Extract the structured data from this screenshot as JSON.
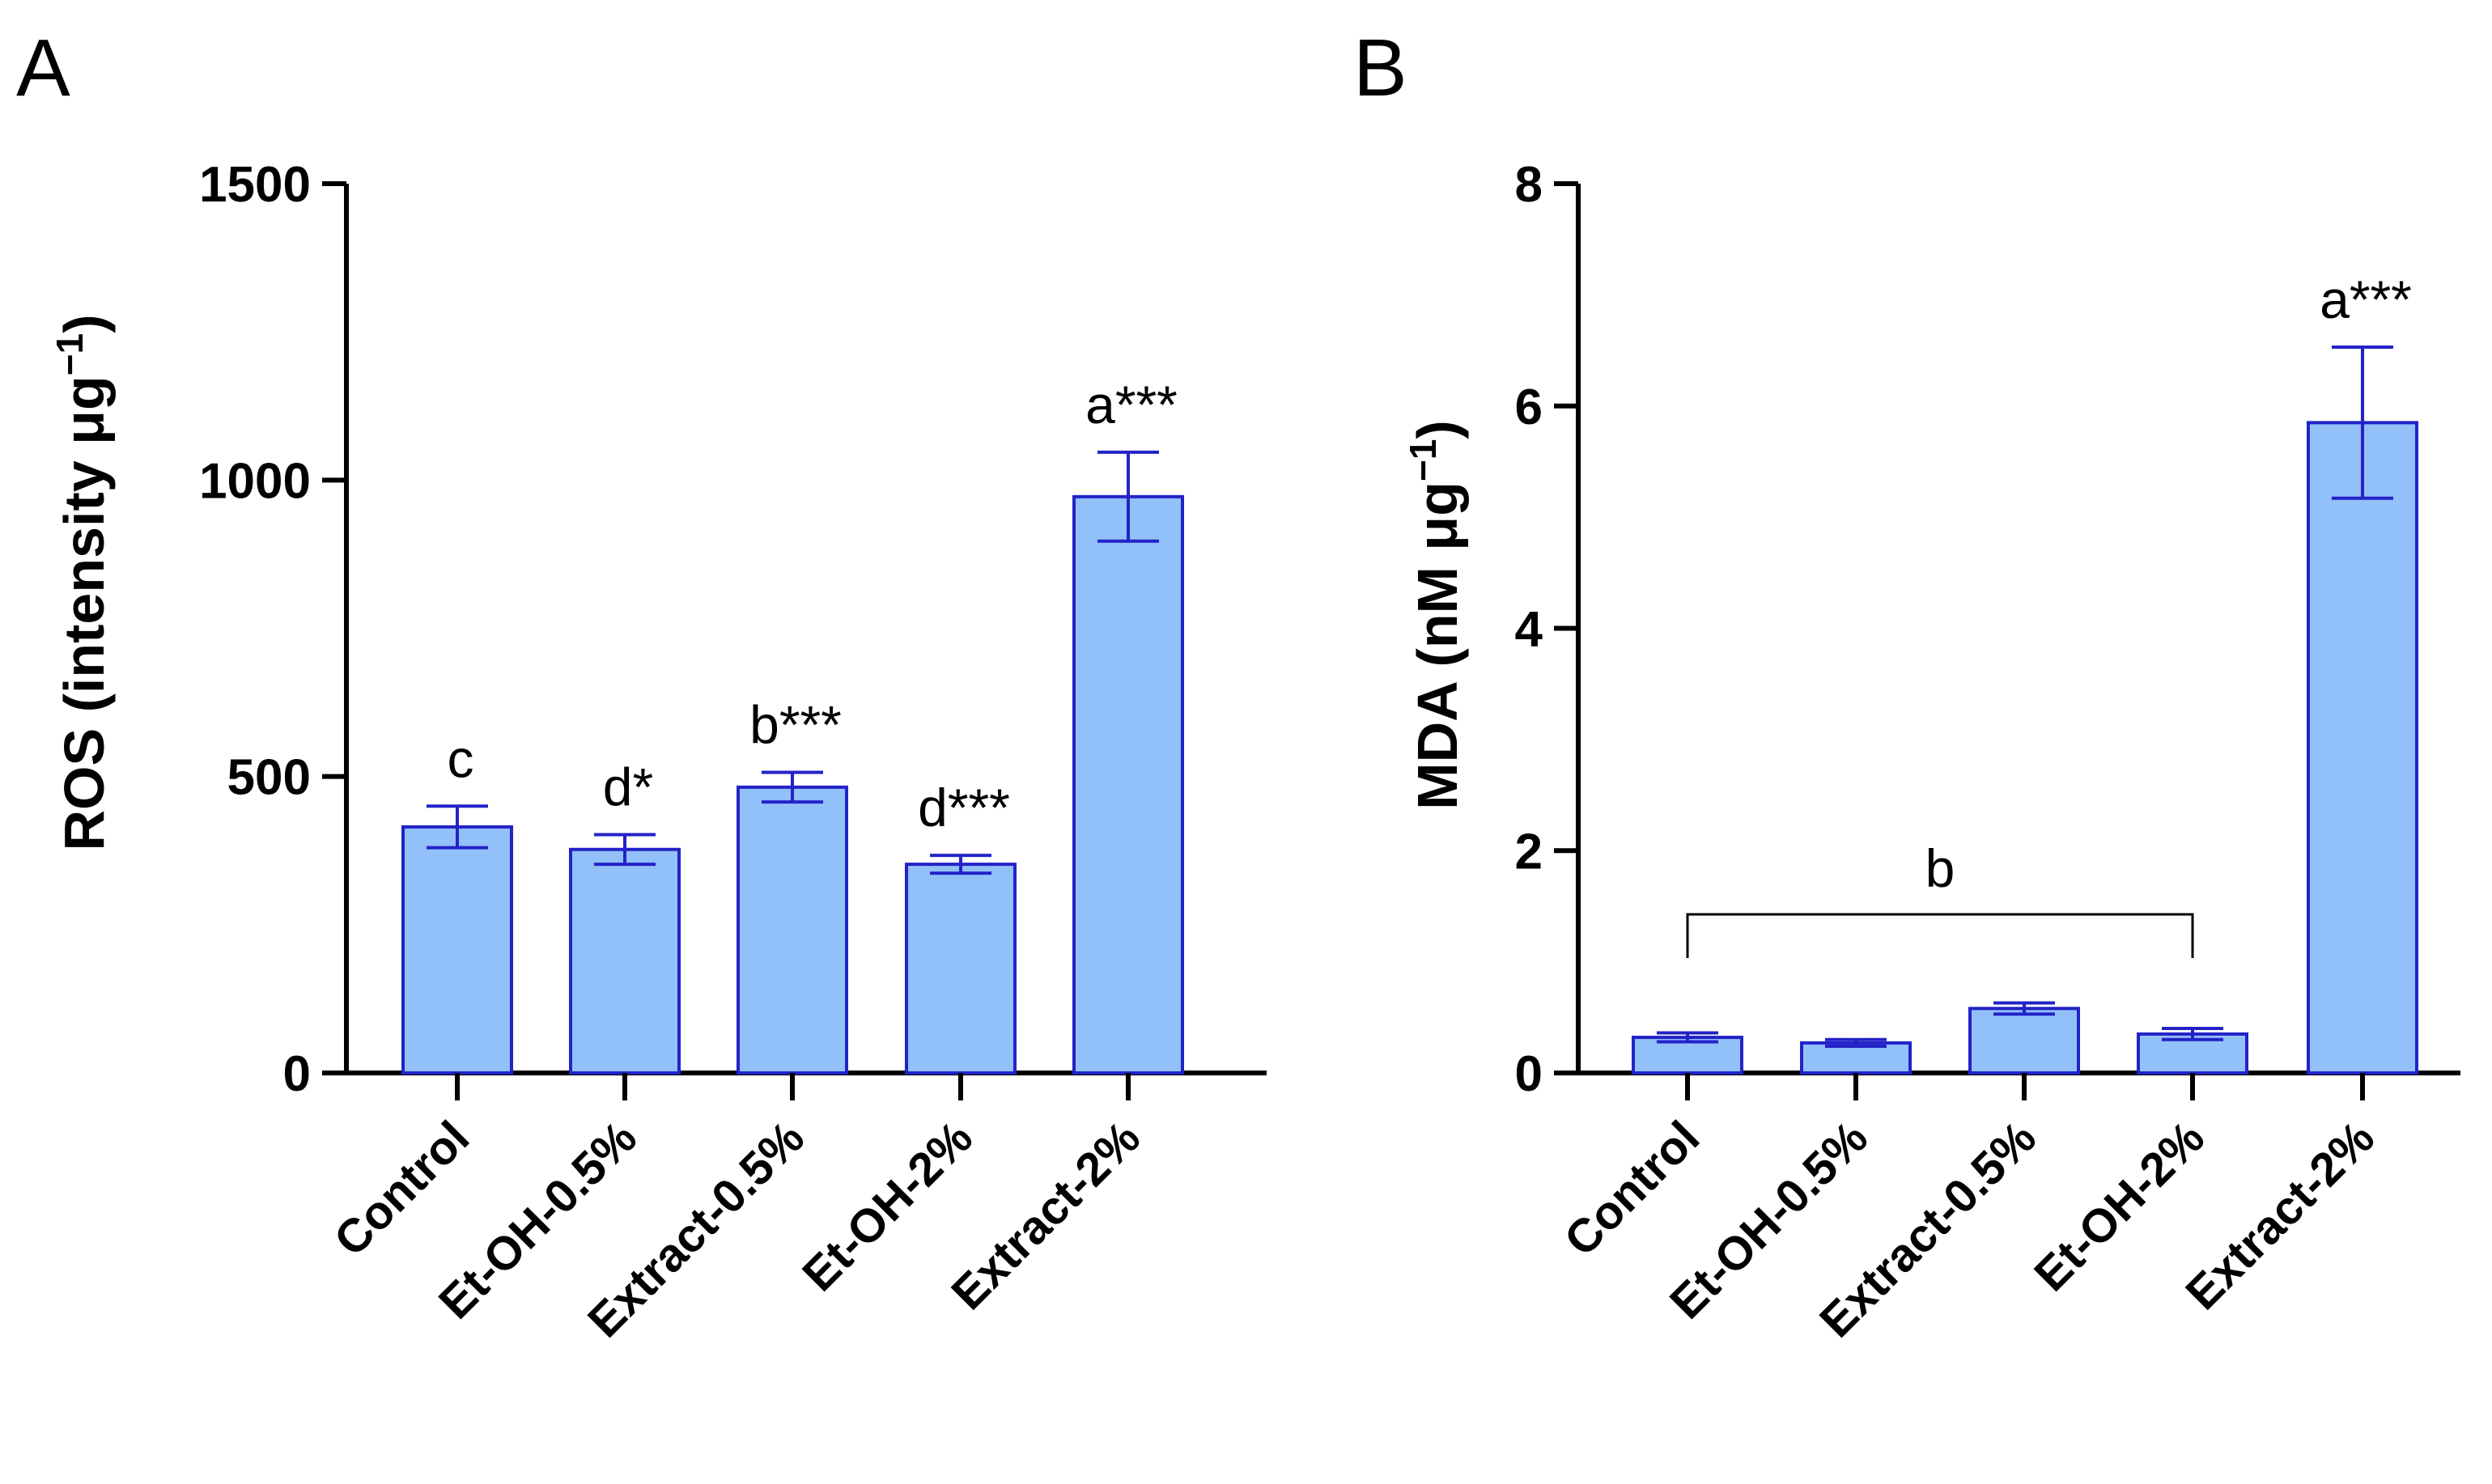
{
  "chart_data": [
    {
      "panel_label": "A",
      "type": "bar",
      "categories": [
        "Control",
        "Et-OH-0.5%",
        "Extract-0.5%",
        "Et-OH-2%",
        "Extract-2%"
      ],
      "values": [
        415,
        377,
        482,
        352,
        972
      ],
      "errors": [
        35,
        25,
        25,
        15,
        75
      ],
      "annotations": [
        "c",
        "d*",
        "b***",
        "d***",
        "a***"
      ],
      "ylabel": "ROS (intensity μg",
      "ylabel_sup": "−1",
      "ylabel_close": ")",
      "ylim": [
        0,
        1500
      ],
      "yticks": [
        "0",
        "500",
        "1000",
        "1500"
      ],
      "grid": false,
      "colors": {
        "bar": "#92c0f8",
        "edge": "#2323c8",
        "axis": "#000000"
      }
    },
    {
      "panel_label": "B",
      "type": "bar",
      "categories": [
        "Control",
        "Et-OH-0.5%",
        "Extract-0.5%",
        "Et-OH-2%",
        "Extract-2%"
      ],
      "values": [
        0.32,
        0.27,
        0.58,
        0.35,
        5.85
      ],
      "errors": [
        0.04,
        0.03,
        0.05,
        0.05,
        0.68
      ],
      "annotations": [
        "",
        "",
        "",
        "",
        "a***"
      ],
      "bracket": {
        "from": 0,
        "to": 3,
        "label": "b"
      },
      "ylabel": "MDA (nM μg",
      "ylabel_sup": "−1",
      "ylabel_close": ")",
      "ylim": [
        0,
        8
      ],
      "yticks": [
        "0",
        "2",
        "4",
        "6",
        "8"
      ],
      "grid": false,
      "colors": {
        "bar": "#92c0f8",
        "edge": "#2323c8",
        "axis": "#000000"
      }
    }
  ]
}
